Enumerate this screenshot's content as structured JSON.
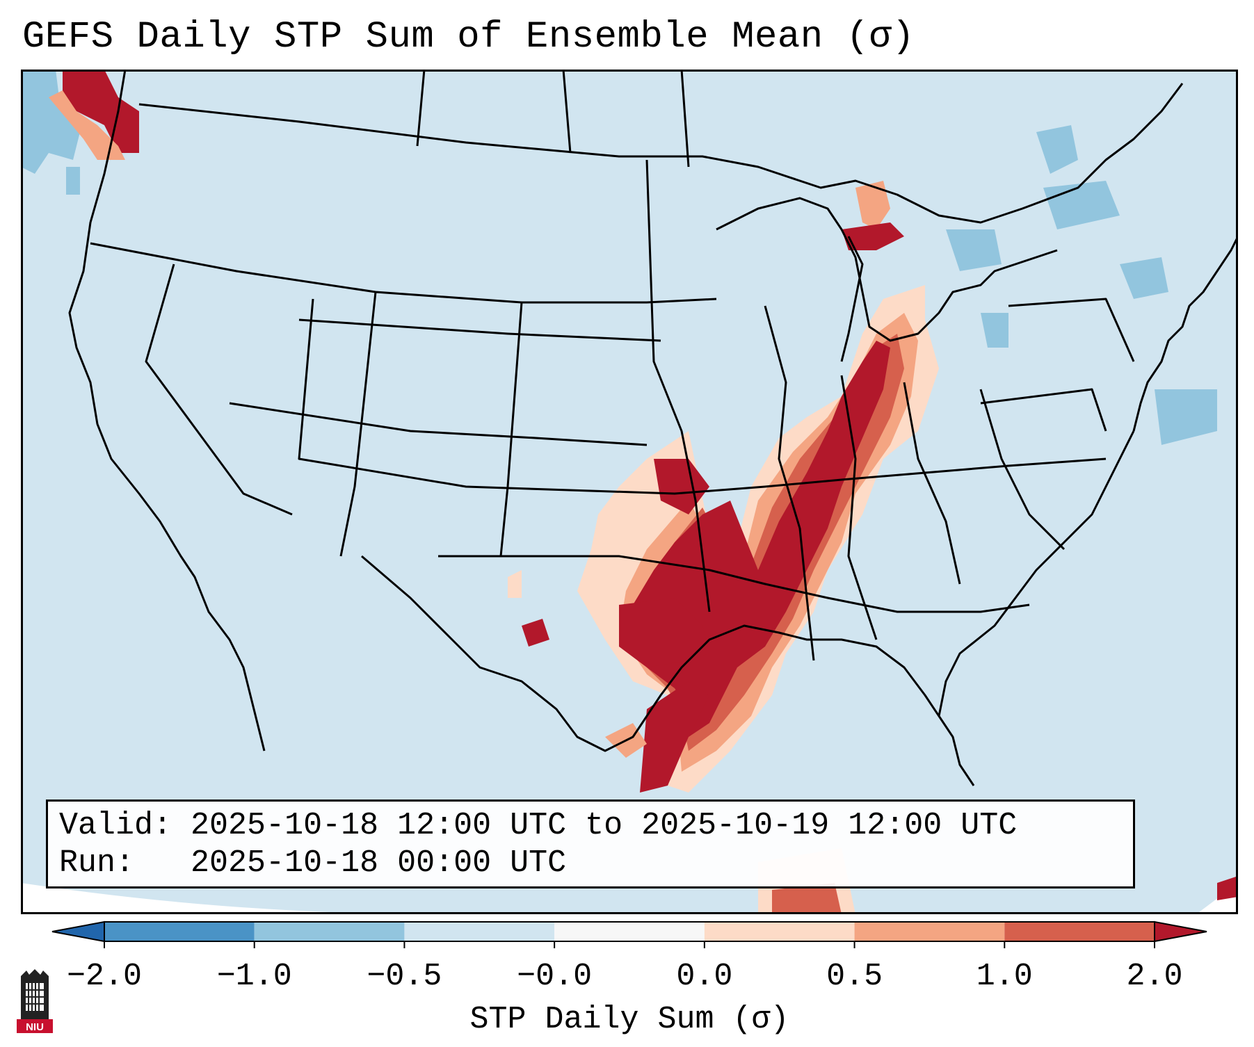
{
  "title": "GEFS Daily STP Sum of Ensemble Mean (σ)",
  "info": {
    "valid_label": "Valid:",
    "valid_value": "2025-10-18 12:00 UTC to 2025-10-19 12:00 UTC",
    "run_label": "Run:",
    "run_value": "2025-10-18 00:00 UTC"
  },
  "colorbar": {
    "label": "STP Daily Sum (σ)",
    "ticks": [
      "−2.0",
      "−1.0",
      "−0.5",
      "−0.0",
      "0.0",
      "0.5",
      "1.0",
      "2.0"
    ],
    "bin_colors": [
      "#4a93c6",
      "#92c5de",
      "#d1e5f0",
      "#f7f7f7",
      "#fddbc7",
      "#f4a582",
      "#d6604d"
    ],
    "under_color": "#2166ac",
    "over_color": "#b2182b"
  },
  "map": {
    "background_color": "#d1e5f0",
    "high_color": "#b2182b",
    "outline_color": "#000000"
  },
  "logo": {
    "text": "NIU"
  }
}
